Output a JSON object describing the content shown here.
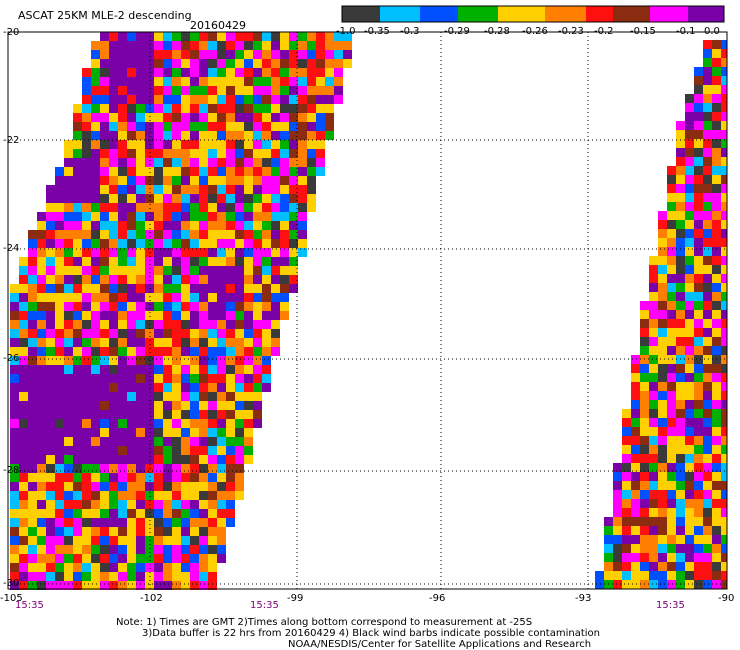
{
  "header": {
    "title": "ASCAT 25KM MLE-2 descending",
    "date": "20160429"
  },
  "legend": {
    "colors": [
      "#3a3a3a",
      "#00bfff",
      "#0050ff",
      "#00b000",
      "#ffd000",
      "#ff8000",
      "#ff1010",
      "#8b2b10",
      "#ff00ff",
      "#7a00a8"
    ],
    "labels": [
      "-1.0",
      "-0.35",
      "-0.3",
      "-0.29",
      "-0.28",
      "-0.26",
      "-0.23",
      "-0.2",
      "-0.15",
      "-0.1",
      "0.0"
    ]
  },
  "axes": {
    "lat_labels": [
      "-20",
      "-22",
      "-24",
      "-26",
      "-28",
      "-30"
    ],
    "lon_labels": [
      "-105",
      "-102",
      "-99",
      "-96",
      "-93",
      "-90"
    ]
  },
  "times": [
    "15:35",
    "15:35",
    "15:35"
  ],
  "notes": {
    "line1": "Note: 1) Times are GMT 2)Times along bottom correspond to measurement at -25S",
    "line2": "3)Data buffer is 22 hrs from 20160429 4) Black wind barbs indicate possible contamination",
    "line3": "NOAA/NESDIS/Center for Satellite Applications and Research"
  }
}
